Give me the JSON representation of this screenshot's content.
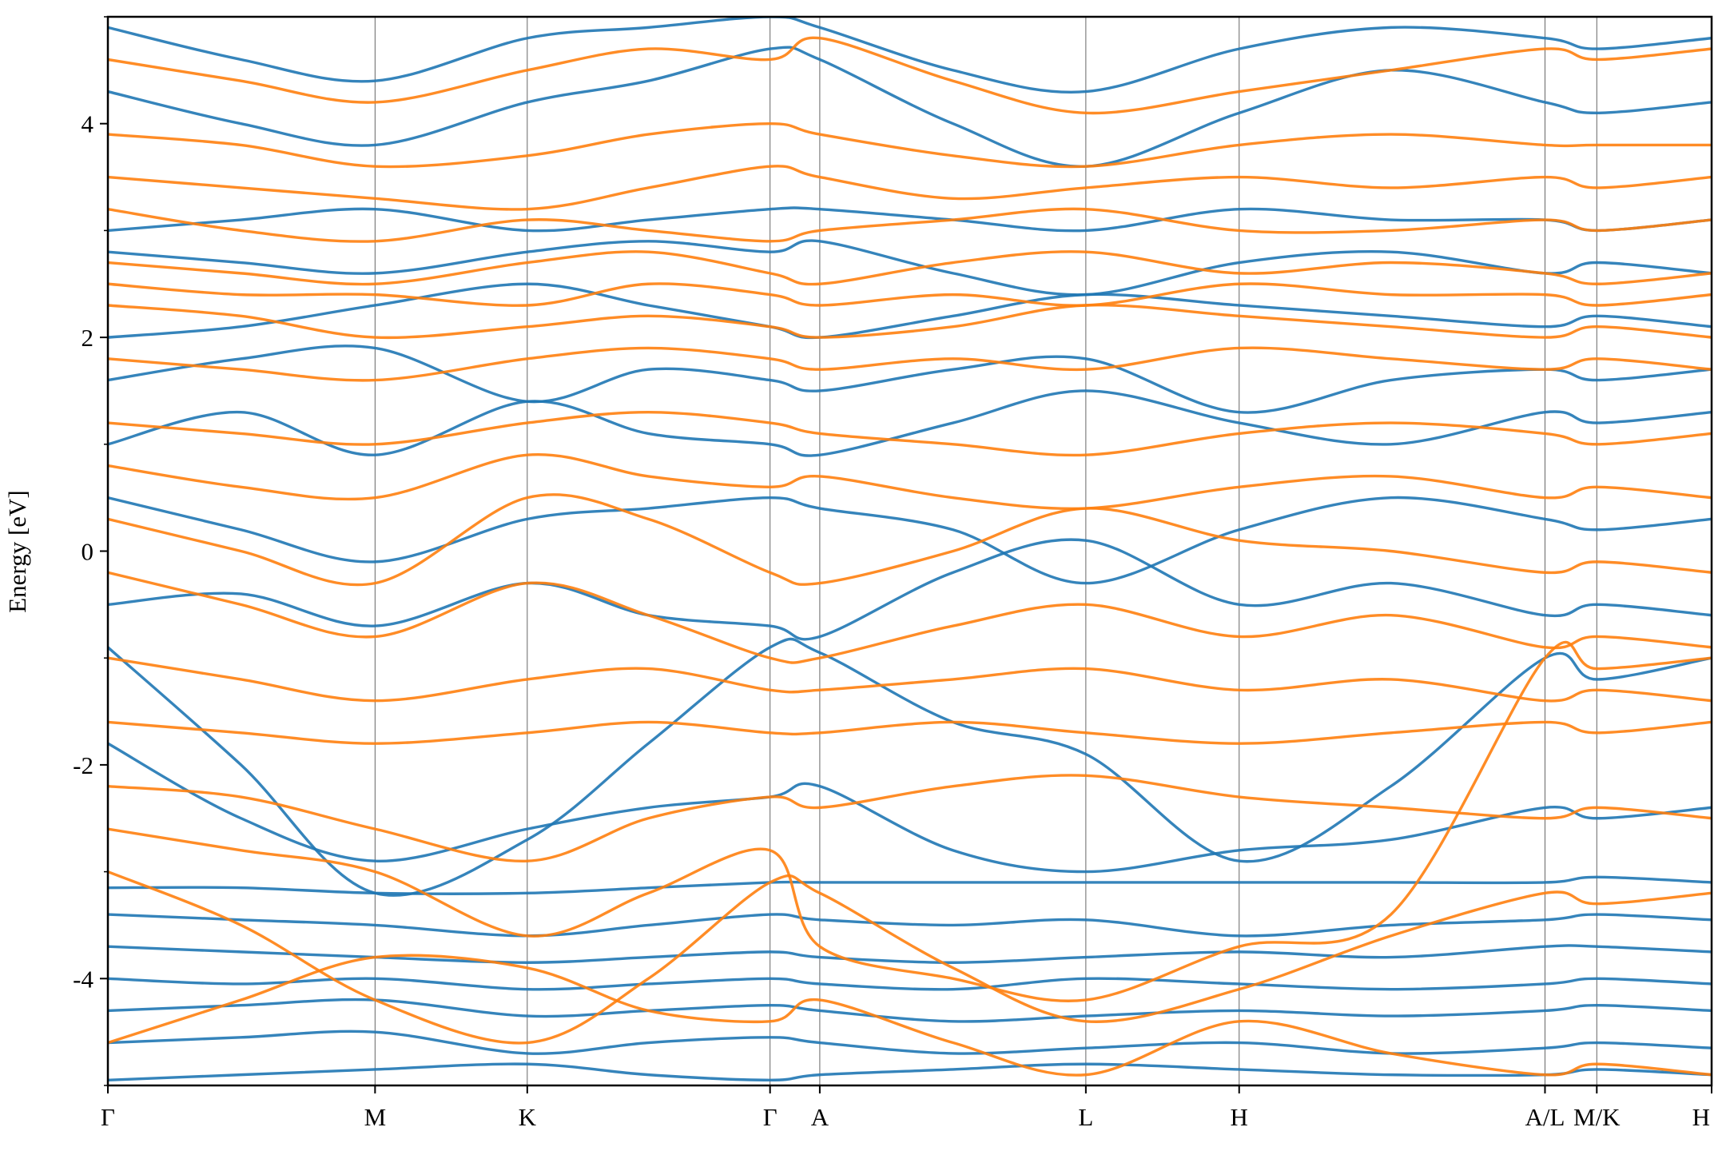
{
  "chart_data": {
    "type": "line",
    "ylabel": "Energy [eV]",
    "ylim": [
      -5,
      5
    ],
    "yticks": [
      -4,
      -2,
      0,
      2,
      4
    ],
    "yminor_ticks": [
      -5,
      -3,
      -1,
      1,
      3,
      5
    ],
    "xlim": [
      0,
      1
    ],
    "xticks": [
      {
        "value": 0,
        "label": "Γ"
      },
      {
        "value": 0.1666,
        "label": "M"
      },
      {
        "value": 0.2615,
        "label": "K"
      },
      {
        "value": 0.4129,
        "label": "Γ"
      },
      {
        "value": 0.4439,
        "label": "A"
      },
      {
        "value": 0.6098,
        "label": "L"
      },
      {
        "value": 0.7054,
        "label": "H"
      },
      {
        "value": 0.8961,
        "label": "A/L"
      },
      {
        "value": 0.9284,
        "label": "M/K"
      },
      {
        "value": 1.0,
        "label": "H"
      }
    ],
    "x": [
      0,
      0.083,
      0.1666,
      0.2615,
      0.337,
      0.4129,
      0.4439,
      0.527,
      0.6098,
      0.7054,
      0.8,
      0.8961,
      0.9284,
      1.0
    ],
    "series": [
      {
        "color": "#1f77b4",
        "values": [
          -4.95,
          -4.9,
          -4.85,
          -4.8,
          -4.9,
          -4.95,
          -4.9,
          -4.85,
          -4.8,
          -4.85,
          -4.9,
          -4.9,
          -4.85,
          -4.9
        ]
      },
      {
        "color": "#1f77b4",
        "values": [
          -4.6,
          -4.55,
          -4.5,
          -4.7,
          -4.6,
          -4.55,
          -4.6,
          -4.7,
          -4.65,
          -4.6,
          -4.7,
          -4.65,
          -4.6,
          -4.65
        ]
      },
      {
        "color": "#1f77b4",
        "values": [
          -4.3,
          -4.25,
          -4.2,
          -4.35,
          -4.3,
          -4.25,
          -4.3,
          -4.4,
          -4.35,
          -4.3,
          -4.35,
          -4.3,
          -4.25,
          -4.3
        ]
      },
      {
        "color": "#1f77b4",
        "values": [
          -4.0,
          -4.05,
          -4.0,
          -4.1,
          -4.05,
          -4.0,
          -4.05,
          -4.1,
          -4.0,
          -4.05,
          -4.1,
          -4.05,
          -4.0,
          -4.05
        ]
      },
      {
        "color": "#1f77b4",
        "values": [
          -3.7,
          -3.75,
          -3.8,
          -3.85,
          -3.8,
          -3.75,
          -3.8,
          -3.85,
          -3.8,
          -3.75,
          -3.8,
          -3.7,
          -3.7,
          -3.75
        ]
      },
      {
        "color": "#1f77b4",
        "values": [
          -3.4,
          -3.45,
          -3.5,
          -3.6,
          -3.5,
          -3.4,
          -3.45,
          -3.5,
          -3.45,
          -3.6,
          -3.5,
          -3.45,
          -3.4,
          -3.45
        ]
      },
      {
        "color": "#1f77b4",
        "values": [
          -3.15,
          -3.15,
          -3.2,
          -3.2,
          -3.15,
          -3.1,
          -3.1,
          -3.1,
          -3.1,
          -3.1,
          -3.1,
          -3.1,
          -3.05,
          -3.1
        ]
      },
      {
        "color": "#1f77b4",
        "values": [
          -0.9,
          -2.0,
          -3.2,
          -2.7,
          -1.8,
          -0.9,
          -0.95,
          -1.6,
          -1.9,
          -2.9,
          -2.2,
          -1.0,
          -1.2,
          -1.0
        ]
      },
      {
        "color": "#1f77b4",
        "values": [
          -0.5,
          -0.4,
          -0.7,
          -0.3,
          -0.6,
          -0.7,
          -0.8,
          -0.2,
          0.1,
          -0.5,
          -0.3,
          -0.6,
          -0.5,
          -0.6
        ]
      },
      {
        "color": "#1f77b4",
        "values": [
          0.5,
          0.2,
          -0.1,
          0.3,
          0.4,
          0.5,
          0.4,
          0.2,
          -0.3,
          0.2,
          0.5,
          0.3,
          0.2,
          0.3
        ]
      },
      {
        "color": "#1f77b4",
        "values": [
          1.0,
          1.3,
          0.9,
          1.4,
          1.1,
          1.0,
          0.9,
          1.2,
          1.5,
          1.2,
          1.0,
          1.3,
          1.2,
          1.3
        ]
      },
      {
        "color": "#1f77b4",
        "values": [
          2.0,
          2.1,
          2.3,
          2.5,
          2.3,
          2.1,
          2.0,
          2.2,
          2.4,
          2.3,
          2.2,
          2.1,
          2.2,
          2.1
        ]
      },
      {
        "color": "#1f77b4",
        "values": [
          2.8,
          2.7,
          2.6,
          2.8,
          2.9,
          2.8,
          2.9,
          2.6,
          2.4,
          2.7,
          2.8,
          2.6,
          2.7,
          2.6
        ]
      },
      {
        "color": "#1f77b4",
        "values": [
          3.0,
          3.1,
          3.2,
          3.0,
          3.1,
          3.2,
          3.2,
          3.1,
          3.0,
          3.2,
          3.1,
          3.1,
          3.0,
          3.1
        ]
      },
      {
        "color": "#1f77b4",
        "values": [
          4.3,
          4.0,
          3.8,
          4.2,
          4.4,
          4.7,
          4.6,
          4.0,
          3.6,
          4.1,
          4.5,
          4.2,
          4.1,
          4.2
        ]
      },
      {
        "color": "#1f77b4",
        "values": [
          4.9,
          4.6,
          4.4,
          4.8,
          4.9,
          5.0,
          4.9,
          4.5,
          4.3,
          4.7,
          4.9,
          4.8,
          4.7,
          4.8
        ]
      },
      {
        "color": "#1f77b4",
        "values": [
          -1.8,
          -2.5,
          -2.9,
          -2.6,
          -2.4,
          -2.3,
          -2.2,
          -2.8,
          -3.0,
          -2.8,
          -2.7,
          -2.4,
          -2.5,
          -2.4
        ]
      },
      {
        "color": "#1f77b4",
        "values": [
          1.6,
          1.8,
          1.9,
          1.4,
          1.7,
          1.6,
          1.5,
          1.7,
          1.8,
          1.3,
          1.6,
          1.7,
          1.6,
          1.7
        ]
      },
      {
        "color": "#ff7f0e",
        "values": [
          3.9,
          3.8,
          3.6,
          3.7,
          3.9,
          4.0,
          3.9,
          3.7,
          3.6,
          3.8,
          3.9,
          3.8,
          3.8,
          3.8
        ]
      },
      {
        "color": "#ff7f0e",
        "values": [
          3.5,
          3.4,
          3.3,
          3.2,
          3.4,
          3.6,
          3.5,
          3.3,
          3.4,
          3.5,
          3.4,
          3.5,
          3.4,
          3.5
        ]
      },
      {
        "color": "#ff7f0e",
        "values": [
          3.2,
          3.0,
          2.9,
          3.1,
          3.0,
          2.9,
          3.0,
          3.1,
          3.2,
          3.0,
          3.0,
          3.1,
          3.0,
          3.1
        ]
      },
      {
        "color": "#ff7f0e",
        "values": [
          2.7,
          2.6,
          2.5,
          2.7,
          2.8,
          2.6,
          2.5,
          2.7,
          2.8,
          2.6,
          2.7,
          2.6,
          2.5,
          2.6
        ]
      },
      {
        "color": "#ff7f0e",
        "values": [
          2.3,
          2.2,
          2.0,
          2.1,
          2.2,
          2.1,
          2.0,
          2.1,
          2.3,
          2.2,
          2.1,
          2.0,
          2.1,
          2.0
        ]
      },
      {
        "color": "#ff7f0e",
        "values": [
          1.8,
          1.7,
          1.6,
          1.8,
          1.9,
          1.8,
          1.7,
          1.8,
          1.7,
          1.9,
          1.8,
          1.7,
          1.8,
          1.7
        ]
      },
      {
        "color": "#ff7f0e",
        "values": [
          1.2,
          1.1,
          1.0,
          1.2,
          1.3,
          1.2,
          1.1,
          1.0,
          0.9,
          1.1,
          1.2,
          1.1,
          1.0,
          1.1
        ]
      },
      {
        "color": "#ff7f0e",
        "values": [
          0.3,
          0.0,
          -0.3,
          0.5,
          0.3,
          -0.2,
          -0.3,
          0.0,
          0.4,
          0.1,
          0.0,
          -0.2,
          -0.1,
          -0.2
        ]
      },
      {
        "color": "#ff7f0e",
        "values": [
          -0.2,
          -0.5,
          -0.8,
          -0.3,
          -0.6,
          -1.0,
          -1.0,
          -0.7,
          -0.5,
          -0.8,
          -0.6,
          -0.9,
          -0.8,
          -0.9
        ]
      },
      {
        "color": "#ff7f0e",
        "values": [
          -1.0,
          -1.2,
          -1.4,
          -1.2,
          -1.1,
          -1.3,
          -1.3,
          -1.2,
          -1.1,
          -1.3,
          -1.2,
          -1.4,
          -1.3,
          -1.4
        ]
      },
      {
        "color": "#ff7f0e",
        "values": [
          -1.6,
          -1.7,
          -1.8,
          -1.7,
          -1.6,
          -1.7,
          -1.7,
          -1.6,
          -1.7,
          -1.8,
          -1.7,
          -1.6,
          -1.7,
          -1.6
        ]
      },
      {
        "color": "#ff7f0e",
        "values": [
          -2.2,
          -2.3,
          -2.6,
          -2.9,
          -2.5,
          -2.3,
          -2.4,
          -2.2,
          -2.1,
          -2.3,
          -2.4,
          -2.5,
          -2.4,
          -2.5
        ]
      },
      {
        "color": "#ff7f0e",
        "values": [
          -2.6,
          -2.8,
          -3.0,
          -3.6,
          -3.2,
          -2.8,
          -3.7,
          -4.0,
          -4.2,
          -3.7,
          -3.4,
          -1.0,
          -1.1,
          -1.0
        ]
      },
      {
        "color": "#ff7f0e",
        "values": [
          -4.6,
          -4.2,
          -3.8,
          -3.9,
          -4.3,
          -4.4,
          -4.2,
          -4.6,
          -4.9,
          -4.4,
          -4.7,
          -4.9,
          -4.8,
          -4.9
        ]
      },
      {
        "color": "#ff7f0e",
        "values": [
          4.6,
          4.4,
          4.2,
          4.5,
          4.7,
          4.6,
          4.8,
          4.4,
          4.1,
          4.3,
          4.5,
          4.7,
          4.6,
          4.7
        ]
      },
      {
        "color": "#ff7f0e",
        "values": [
          0.8,
          0.6,
          0.5,
          0.9,
          0.7,
          0.6,
          0.7,
          0.5,
          0.4,
          0.6,
          0.7,
          0.5,
          0.6,
          0.5
        ]
      },
      {
        "color": "#ff7f0e",
        "values": [
          -3.0,
          -3.5,
          -4.2,
          -4.6,
          -4.0,
          -3.1,
          -3.2,
          -3.9,
          -4.4,
          -4.1,
          -3.6,
          -3.2,
          -3.3,
          -3.2
        ]
      },
      {
        "color": "#ff7f0e",
        "values": [
          2.5,
          2.4,
          2.4,
          2.3,
          2.5,
          2.4,
          2.3,
          2.4,
          2.3,
          2.5,
          2.4,
          2.4,
          2.3,
          2.4
        ]
      }
    ]
  }
}
